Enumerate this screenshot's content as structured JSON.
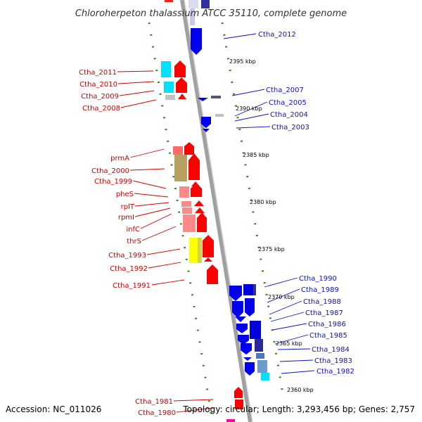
{
  "title": "Chloroherpeton thalassium ATCC 35110, complete genome",
  "footer": {
    "accession": "Accession: NC_011026",
    "summary": "Topology: circular; Length: 3,293,456 bp; Genes: 2,757"
  },
  "colors": {
    "left_label": "#d00000",
    "right_label": "#1010c0",
    "backbone": "#a0a0a0",
    "tick": "#2a8a1a",
    "forward_gene": "#ff0000",
    "reverse_gene": "#0000ee"
  },
  "scale": {
    "unit": "kbp",
    "marks": [
      {
        "label": "2395 kbp",
        "kbp": 2395
      },
      {
        "label": "2390 kbp",
        "kbp": 2390
      },
      {
        "label": "2385 kbp",
        "kbp": 2385
      },
      {
        "label": "2380 kbp",
        "kbp": 2380
      },
      {
        "label": "2375 kbp",
        "kbp": 2375
      },
      {
        "label": "2370 kbp",
        "kbp": 2370
      },
      {
        "label": "2365 kbp",
        "kbp": 2365
      },
      {
        "label": "2360 kbp",
        "kbp": 2360
      }
    ]
  },
  "genes_left": [
    {
      "name": "Ctha_2011"
    },
    {
      "name": "Ctha_2010"
    },
    {
      "name": "Ctha_2009"
    },
    {
      "name": "Ctha_2008"
    },
    {
      "name": "prmA"
    },
    {
      "name": "Ctha_2000"
    },
    {
      "name": "Ctha_1999"
    },
    {
      "name": "pheS"
    },
    {
      "name": "rplT"
    },
    {
      "name": "rpmI"
    },
    {
      "name": "infC"
    },
    {
      "name": "thrS"
    },
    {
      "name": "Ctha_1993"
    },
    {
      "name": "Ctha_1992"
    },
    {
      "name": "Ctha_1991"
    },
    {
      "name": "Ctha_1981"
    },
    {
      "name": "Ctha_1980"
    }
  ],
  "genes_right": [
    {
      "name": "Ctha_2012"
    },
    {
      "name": "Ctha_2007"
    },
    {
      "name": "Ctha_2005"
    },
    {
      "name": "Ctha_2004"
    },
    {
      "name": "Ctha_2003"
    },
    {
      "name": "Ctha_1990"
    },
    {
      "name": "Ctha_1989"
    },
    {
      "name": "Ctha_1988"
    },
    {
      "name": "Ctha_1987"
    },
    {
      "name": "Ctha_1986"
    },
    {
      "name": "Ctha_1985"
    },
    {
      "name": "Ctha_1984"
    },
    {
      "name": "Ctha_1983"
    },
    {
      "name": "Ctha_1982"
    }
  ]
}
